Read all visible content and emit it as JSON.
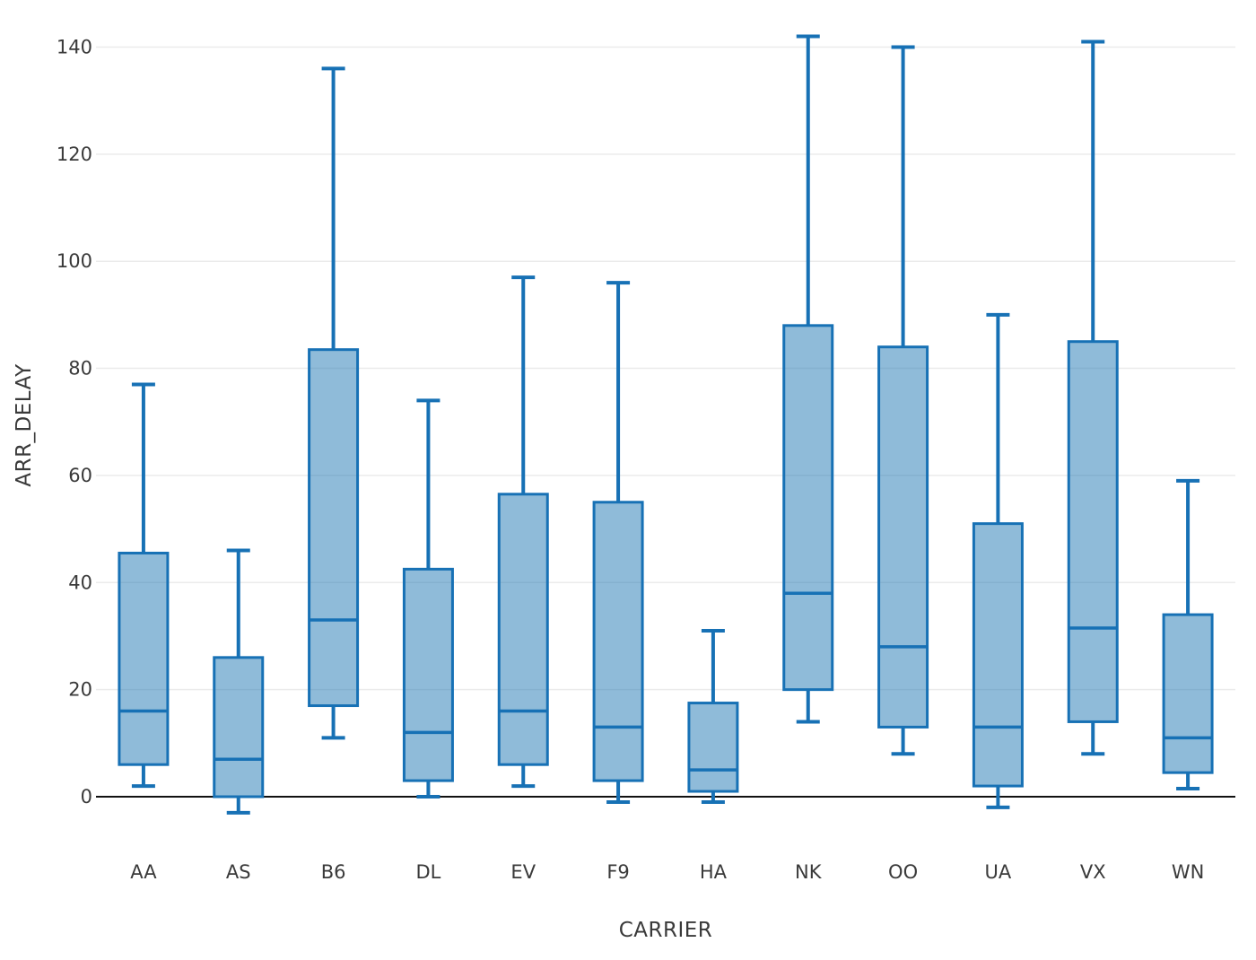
{
  "chart_data": {
    "type": "box",
    "title": "",
    "xlabel": "CARRIER",
    "ylabel": "ARR_DELAY",
    "categories": [
      "AA",
      "AS",
      "B6",
      "DL",
      "EV",
      "F9",
      "HA",
      "NK",
      "OO",
      "UA",
      "VX",
      "WN"
    ],
    "yticks": [
      0,
      20,
      40,
      60,
      80,
      100,
      120,
      140
    ],
    "ylim": [
      -14,
      148
    ],
    "grid": "horizontal-only",
    "legend": "none",
    "style": {
      "box_stroke": "#1771b5",
      "box_fill": "rgba(31,119,180,0.5)",
      "grid_color": "#ebebeb",
      "axis_line_color": "#111111",
      "text_color": "#3a3a3a"
    },
    "boxes": [
      {
        "carrier": "AA",
        "whisker_low": 2,
        "q1": 6,
        "median": 16,
        "q3": 45.5,
        "whisker_high": 77
      },
      {
        "carrier": "AS",
        "whisker_low": -3,
        "q1": 0,
        "median": 7,
        "q3": 26,
        "whisker_high": 46
      },
      {
        "carrier": "B6",
        "whisker_low": 11,
        "q1": 17,
        "median": 33,
        "q3": 83.5,
        "whisker_high": 136
      },
      {
        "carrier": "DL",
        "whisker_low": 0,
        "q1": 3,
        "median": 12,
        "q3": 42.5,
        "whisker_high": 74
      },
      {
        "carrier": "EV",
        "whisker_low": 2,
        "q1": 6,
        "median": 16,
        "q3": 56.5,
        "whisker_high": 97
      },
      {
        "carrier": "F9",
        "whisker_low": -1,
        "q1": 3,
        "median": 13,
        "q3": 55,
        "whisker_high": 96
      },
      {
        "carrier": "HA",
        "whisker_low": -1,
        "q1": 1,
        "median": 5,
        "q3": 17.5,
        "whisker_high": 31
      },
      {
        "carrier": "NK",
        "whisker_low": 14,
        "q1": 20,
        "median": 38,
        "q3": 88,
        "whisker_high": 142
      },
      {
        "carrier": "OO",
        "whisker_low": 8,
        "q1": 13,
        "median": 28,
        "q3": 84,
        "whisker_high": 140
      },
      {
        "carrier": "UA",
        "whisker_low": -2,
        "q1": 2,
        "median": 13,
        "q3": 51,
        "whisker_high": 90
      },
      {
        "carrier": "VX",
        "whisker_low": 8,
        "q1": 14,
        "median": 31.5,
        "q3": 85,
        "whisker_high": 141
      },
      {
        "carrier": "WN",
        "whisker_low": 1.5,
        "q1": 4.5,
        "median": 11,
        "q3": 34,
        "whisker_high": 59
      }
    ]
  }
}
